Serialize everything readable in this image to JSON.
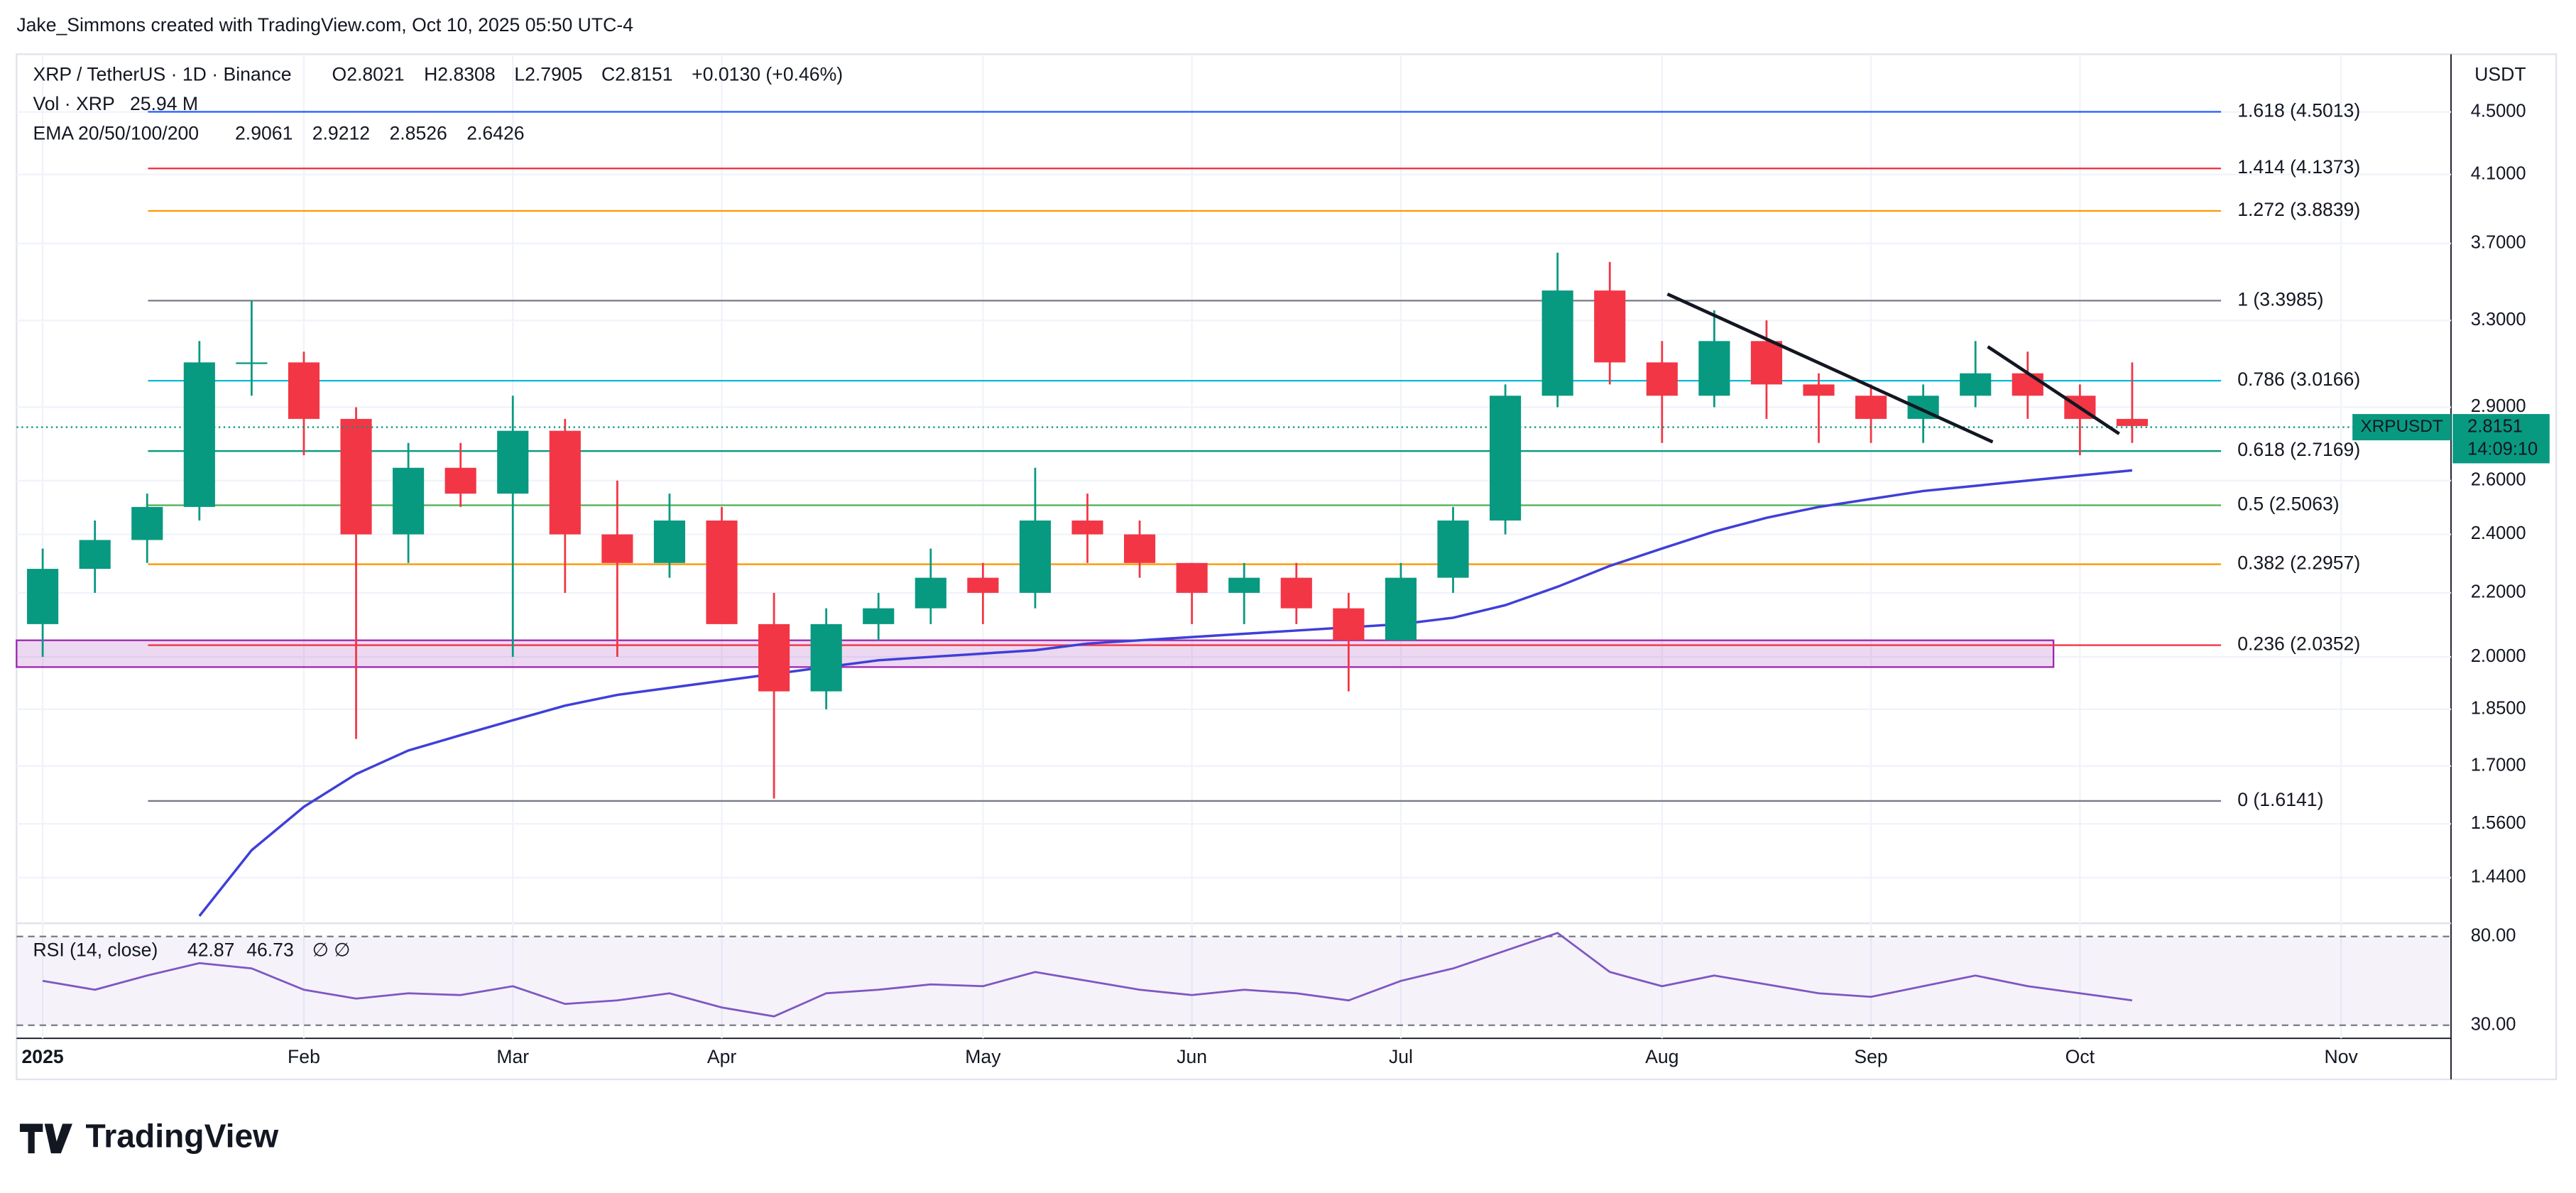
{
  "attribution": "Jake_Simmons created with TradingView.com, Oct 10, 2025 05:50 UTC-4",
  "logo": "TradingView",
  "chart_data": {
    "type": "candlestick",
    "title": "XRP / TetherUS · 1D · Binance",
    "ohlc_labels": [
      "O2.8021",
      "H2.8308",
      "L2.7905",
      "C2.8151",
      "+0.0130 (+0.46%)"
    ],
    "volume": {
      "label": "Vol · XRP",
      "value_label": "25.94 M"
    },
    "ema": {
      "label": "EMA 20/50/100/200",
      "values": [
        2.9061,
        2.9212,
        2.8526,
        2.6426
      ],
      "colors": [
        "#f23645",
        "#ff9800",
        "#22c7e0",
        "#2962ff"
      ]
    },
    "axis_unit": "USDT",
    "log_scale": true,
    "grid": true,
    "up_color": "#089981",
    "down_color": "#f23645",
    "categories": [
      "2025",
      null,
      null,
      null,
      null,
      "Feb",
      null,
      null,
      null,
      "Mar",
      null,
      null,
      null,
      "Apr",
      null,
      null,
      null,
      null,
      "May",
      null,
      null,
      null,
      "Jun",
      null,
      null,
      null,
      "Jul",
      null,
      null,
      null,
      null,
      "Aug",
      null,
      null,
      null,
      "Sep",
      null,
      null,
      null,
      "Oct",
      null,
      null,
      null,
      null,
      "Nov"
    ],
    "open": [
      2.1,
      2.28,
      2.38,
      2.5,
      3.1,
      3.1,
      2.85,
      2.4,
      2.65,
      2.55,
      2.8,
      2.4,
      2.3,
      2.45,
      2.1,
      1.9,
      2.1,
      2.15,
      2.25,
      2.2,
      2.45,
      2.4,
      2.3,
      2.2,
      2.25,
      2.15,
      2.05,
      2.25,
      2.45,
      2.95,
      3.45,
      3.1,
      2.95,
      3.2,
      3.0,
      2.95,
      2.85,
      2.95,
      3.05,
      2.95,
      2.85,
      null,
      null,
      null,
      null
    ],
    "high": [
      2.35,
      2.45,
      2.55,
      3.2,
      3.4,
      3.15,
      2.9,
      2.75,
      2.75,
      2.95,
      2.85,
      2.6,
      2.55,
      2.5,
      2.2,
      2.15,
      2.2,
      2.35,
      2.3,
      2.65,
      2.55,
      2.45,
      2.3,
      2.3,
      2.3,
      2.2,
      2.3,
      2.5,
      3.0,
      3.65,
      3.6,
      3.2,
      3.35,
      3.3,
      3.05,
      3.0,
      3.0,
      3.2,
      3.15,
      3.0,
      3.1,
      null,
      null,
      null,
      null
    ],
    "low": [
      2.0,
      2.2,
      2.3,
      2.45,
      2.95,
      2.7,
      1.77,
      2.3,
      2.5,
      2.0,
      2.2,
      2.0,
      2.25,
      2.1,
      1.62,
      1.85,
      2.05,
      2.1,
      2.1,
      2.15,
      2.3,
      2.25,
      2.1,
      2.1,
      2.1,
      1.9,
      2.05,
      2.2,
      2.4,
      2.9,
      3.0,
      2.75,
      2.9,
      2.85,
      2.75,
      2.75,
      2.75,
      2.9,
      2.85,
      2.7,
      2.75,
      null,
      null,
      null,
      null
    ],
    "close": [
      2.28,
      2.38,
      2.5,
      3.1,
      3.1,
      2.85,
      2.4,
      2.65,
      2.55,
      2.8,
      2.4,
      2.3,
      2.45,
      2.1,
      1.9,
      2.1,
      2.15,
      2.25,
      2.2,
      2.45,
      2.4,
      2.3,
      2.2,
      2.25,
      2.15,
      2.05,
      2.25,
      2.45,
      2.95,
      3.45,
      3.1,
      2.95,
      3.2,
      3.0,
      2.95,
      2.85,
      2.95,
      3.05,
      2.95,
      2.85,
      2.82,
      null,
      null,
      null,
      null
    ],
    "ema200_line": {
      "color": "#3f3fd9",
      "values": [
        null,
        null,
        null,
        1.36,
        1.5,
        1.6,
        1.68,
        1.74,
        1.78,
        1.82,
        1.86,
        1.89,
        1.91,
        1.93,
        1.95,
        1.97,
        1.99,
        2.0,
        2.01,
        2.02,
        2.04,
        2.05,
        2.06,
        2.07,
        2.08,
        2.09,
        2.1,
        2.12,
        2.16,
        2.22,
        2.29,
        2.35,
        2.41,
        2.46,
        2.5,
        2.53,
        2.56,
        2.58,
        2.6,
        2.62,
        2.64,
        null,
        null,
        null,
        null
      ]
    },
    "ylim": [
      1.352,
      4.88
    ],
    "yticks": [
      {
        "value": 4.5,
        "label": "4.5000"
      },
      {
        "value": 4.1,
        "label": "4.1000"
      },
      {
        "value": 3.7,
        "label": "3.7000"
      },
      {
        "value": 3.3,
        "label": "3.3000"
      },
      {
        "value": 2.9,
        "label": "2.9000"
      },
      {
        "value": 2.6,
        "label": "2.6000"
      },
      {
        "value": 2.4,
        "label": "2.4000"
      },
      {
        "value": 2.2,
        "label": "2.2000"
      },
      {
        "value": 2.0,
        "label": "2.0000"
      },
      {
        "value": 1.85,
        "label": "1.8500"
      },
      {
        "value": 1.7,
        "label": "1.7000"
      },
      {
        "value": 1.56,
        "label": "1.5600"
      },
      {
        "value": 1.44,
        "label": "1.4400"
      }
    ],
    "fib_levels": [
      {
        "label": "1.618 (4.5013)",
        "value": 4.5013,
        "color": "#2962ff"
      },
      {
        "label": "1.414 (4.1373)",
        "value": 4.1373,
        "color": "#f23645"
      },
      {
        "label": "1.272 (3.8839)",
        "value": 3.8839,
        "color": "#ff9800"
      },
      {
        "label": "1 (3.3985)",
        "value": 3.3985,
        "color": "#787b86"
      },
      {
        "label": "0.786 (3.0166)",
        "value": 3.0166,
        "color": "#00bcd4"
      },
      {
        "label": "0.618 (2.7169)",
        "value": 2.7169,
        "color": "#089981"
      },
      {
        "label": "0.5 (2.5063)",
        "value": 2.5063,
        "color": "#4caf50"
      },
      {
        "label": "0.382 (2.2957)",
        "value": 2.2957,
        "color": "#ff9800"
      },
      {
        "label": "0.236 (2.0352)",
        "value": 2.0352,
        "color": "#f23645"
      },
      {
        "label": "0 (1.6141)",
        "value": 1.6141,
        "color": "#787b86"
      }
    ],
    "zone": {
      "low": 1.97,
      "high": 2.05,
      "color": "#9c27b0"
    },
    "last_price": {
      "symbol": "XRPUSDT",
      "value": 2.8151,
      "countdown": "14:09:10",
      "color": "#089981"
    },
    "rsi": {
      "label": "RSI (14, close)",
      "value_label": "42.87",
      "ma_label": "46.73",
      "na_labels": "∅ ∅",
      "color": "#7e57c2",
      "values": [
        55,
        50,
        58,
        65,
        62,
        50,
        45,
        48,
        47,
        52,
        42,
        44,
        48,
        40,
        35,
        48,
        50,
        53,
        52,
        60,
        55,
        50,
        47,
        50,
        48,
        44,
        55,
        62,
        72,
        82,
        60,
        52,
        58,
        53,
        48,
        46,
        52,
        58,
        52,
        48,
        44,
        null,
        null,
        null,
        null
      ],
      "ylim": [
        24.5,
        86.5
      ],
      "yticks": [
        {
          "value": 80,
          "label": "80.00"
        },
        {
          "value": 30,
          "label": "30.00"
        }
      ]
    }
  }
}
